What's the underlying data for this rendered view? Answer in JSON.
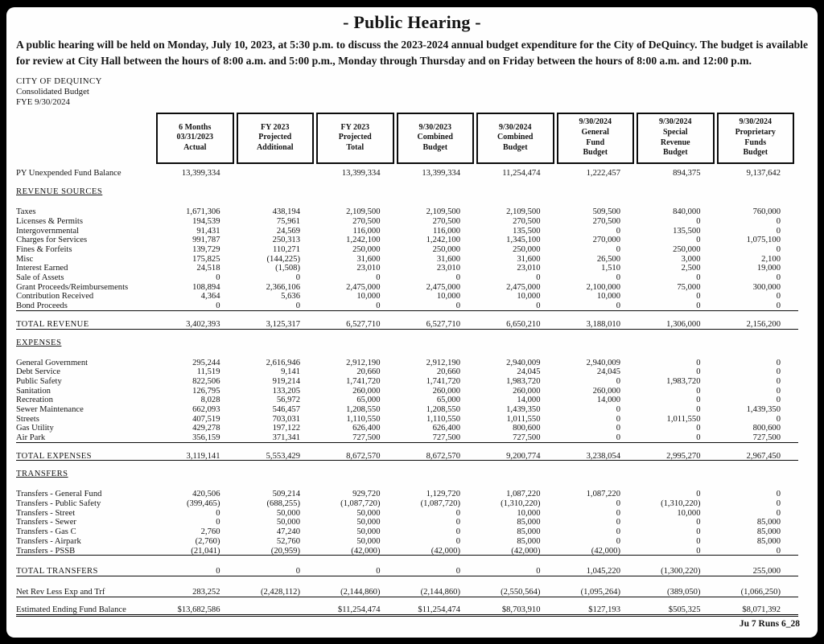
{
  "page": {
    "title": "- Public Hearing -",
    "intro": "A public hearing will be held on Monday, July 10, 2023, at 5:30 p.m. to discuss the 2023-2024 annual budget expenditure for the City of DeQuincy.  The budget is available for review at City Hall between the hours of 8:00 a.m. and 5:00 p.m., Monday through Thursday and on Friday between the hours of 8:00 a.m. and 12:00 p.m.",
    "org_line1": "CITY OF DEQUINCY",
    "org_line2": "Consolidated Budget",
    "org_line3": "FYE 9/30/2024",
    "footer": "Ju 7 Runs 6_28"
  },
  "table": {
    "column_headers": [
      [
        "6 Months",
        "03/31/2023",
        "Actual"
      ],
      [
        "FY 2023",
        "Projected",
        "Additional"
      ],
      [
        "FY 2023",
        "Projected",
        "Total"
      ],
      [
        "9/30/2023",
        "Combined",
        "Budget"
      ],
      [
        "9/30/2024",
        "Combined",
        "Budget"
      ],
      [
        "9/30/2024",
        "General",
        "Fund",
        "Budget"
      ],
      [
        "9/30/2024",
        "Special",
        "Revenue",
        "Budget"
      ],
      [
        "9/30/2024",
        "Proprietary",
        "Funds",
        "Budget"
      ]
    ],
    "rows": [
      {
        "t": "row",
        "label": "PY Unexpended Fund Balance",
        "v": [
          "13,399,334",
          "",
          "13,399,334",
          "13,399,334",
          "11,254,474",
          "1,222,457",
          "894,375",
          "9,137,642"
        ]
      },
      {
        "t": "gap",
        "h": 12
      },
      {
        "t": "sec",
        "label": "REVENUE SOURCES"
      },
      {
        "t": "gap",
        "h": 13
      },
      {
        "t": "row",
        "label": "Taxes",
        "v": [
          "1,671,306",
          "438,194",
          "2,109,500",
          "2,109,500",
          "2,109,500",
          "509,500",
          "840,000",
          "760,000"
        ]
      },
      {
        "t": "row",
        "label": "Licenses & Permits",
        "v": [
          "194,539",
          "75,961",
          "270,500",
          "270,500",
          "270,500",
          "270,500",
          "0",
          "0"
        ]
      },
      {
        "t": "row",
        "label": "Intergovernmental",
        "v": [
          "91,431",
          "24,569",
          "116,000",
          "116,000",
          "135,500",
          "0",
          "135,500",
          "0"
        ]
      },
      {
        "t": "row",
        "label": "Charges for Services",
        "v": [
          "991,787",
          "250,313",
          "1,242,100",
          "1,242,100",
          "1,345,100",
          "270,000",
          "0",
          "1,075,100"
        ]
      },
      {
        "t": "row",
        "label": "Fines & Forfeits",
        "v": [
          "139,729",
          "110,271",
          "250,000",
          "250,000",
          "250,000",
          "0",
          "250,000",
          "0"
        ]
      },
      {
        "t": "row",
        "label": "Misc",
        "v": [
          "175,825",
          "(144,225)",
          "31,600",
          "31,600",
          "31,600",
          "26,500",
          "3,000",
          "2,100"
        ]
      },
      {
        "t": "row",
        "label": "Interest Earned",
        "v": [
          "24,518",
          "(1,508)",
          "23,010",
          "23,010",
          "23,010",
          "1,510",
          "2,500",
          "19,000"
        ]
      },
      {
        "t": "row",
        "label": "Sale of Assets",
        "v": [
          "0",
          "0",
          "0",
          "0",
          "0",
          "0",
          "0",
          "0"
        ]
      },
      {
        "t": "row",
        "label": "Grant Proceeds/Reimbursements",
        "v": [
          "108,894",
          "2,366,106",
          "2,475,000",
          "2,475,000",
          "2,475,000",
          "2,100,000",
          "75,000",
          "300,000"
        ]
      },
      {
        "t": "row",
        "label": "Contribution Received",
        "v": [
          "4,364",
          "5,636",
          "10,000",
          "10,000",
          "10,000",
          "10,000",
          "0",
          "0"
        ]
      },
      {
        "t": "row",
        "u": true,
        "label": "Bond Proceeds",
        "v": [
          "0",
          "0",
          "0",
          "0",
          "0",
          "0",
          "0",
          "0"
        ]
      },
      {
        "t": "gap",
        "h": 11
      },
      {
        "t": "row",
        "u": true,
        "tot": true,
        "label": "TOTAL REVENUE",
        "v": [
          "3,402,393",
          "3,125,317",
          "6,527,710",
          "6,527,710",
          "6,650,210",
          "3,188,010",
          "1,306,000",
          "2,156,200"
        ]
      },
      {
        "t": "gap",
        "h": 11
      },
      {
        "t": "sec",
        "label": "EXPENSES"
      },
      {
        "t": "gap",
        "h": 13
      },
      {
        "t": "row",
        "label": "General Government",
        "v": [
          "295,244",
          "2,616,946",
          "2,912,190",
          "2,912,190",
          "2,940,009",
          "2,940,009",
          "0",
          "0"
        ]
      },
      {
        "t": "row",
        "label": "Debt Service",
        "v": [
          "11,519",
          "9,141",
          "20,660",
          "20,660",
          "24,045",
          "24,045",
          "0",
          "0"
        ]
      },
      {
        "t": "row",
        "label": "Public Safety",
        "v": [
          "822,506",
          "919,214",
          "1,741,720",
          "1,741,720",
          "1,983,720",
          "0",
          "1,983,720",
          "0"
        ]
      },
      {
        "t": "row",
        "label": "Sanitation",
        "v": [
          "126,795",
          "133,205",
          "260,000",
          "260,000",
          "260,000",
          "260,000",
          "0",
          "0"
        ]
      },
      {
        "t": "row",
        "label": "Recreation",
        "v": [
          "8,028",
          "56,972",
          "65,000",
          "65,000",
          "14,000",
          "14,000",
          "0",
          "0"
        ]
      },
      {
        "t": "row",
        "label": "Sewer Maintenance",
        "v": [
          "662,093",
          "546,457",
          "1,208,550",
          "1,208,550",
          "1,439,350",
          "0",
          "0",
          "1,439,350"
        ]
      },
      {
        "t": "row",
        "label": "Streets",
        "v": [
          "407,519",
          "703,031",
          "1,110,550",
          "1,110,550",
          "1,011,550",
          "0",
          "1,011,550",
          "0"
        ]
      },
      {
        "t": "row",
        "label": "Gas Utility",
        "v": [
          "429,278",
          "197,122",
          "626,400",
          "626,400",
          "800,600",
          "0",
          "0",
          "800,600"
        ]
      },
      {
        "t": "row",
        "u": true,
        "label": "Air Park",
        "v": [
          "356,159",
          "371,341",
          "727,500",
          "727,500",
          "727,500",
          "0",
          "0",
          "727,500"
        ]
      },
      {
        "t": "gap",
        "h": 11
      },
      {
        "t": "row",
        "u": true,
        "tot": true,
        "label": "TOTAL EXPENSES",
        "v": [
          "3,119,141",
          "5,553,429",
          "8,672,570",
          "8,672,570",
          "9,200,774",
          "3,238,054",
          "2,995,270",
          "2,967,450"
        ]
      },
      {
        "t": "gap",
        "h": 11
      },
      {
        "t": "sec",
        "label": "TRANSFERS"
      },
      {
        "t": "gap",
        "h": 13
      },
      {
        "t": "row",
        "label": "Transfers - General Fund",
        "v": [
          "420,506",
          "509,214",
          "929,720",
          "1,129,720",
          "1,087,220",
          "1,087,220",
          "0",
          "0"
        ]
      },
      {
        "t": "row",
        "label": "Transfers - Public Safety",
        "v": [
          "(399,465)",
          "(688,255)",
          "(1,087,720)",
          "(1,087,720)",
          "(1,310,220)",
          "0",
          "(1,310,220)",
          "0"
        ]
      },
      {
        "t": "row",
        "label": "Transfers - Street",
        "v": [
          "0",
          "50,000",
          "50,000",
          "0",
          "10,000",
          "0",
          "10,000",
          "0"
        ]
      },
      {
        "t": "row",
        "label": "Transfers - Sewer",
        "v": [
          "0",
          "50,000",
          "50,000",
          "0",
          "85,000",
          "0",
          "0",
          "85,000"
        ]
      },
      {
        "t": "row",
        "label": "Transfers - Gas C",
        "v": [
          "2,760",
          "47,240",
          "50,000",
          "0",
          "85,000",
          "0",
          "0",
          "85,000"
        ]
      },
      {
        "t": "row",
        "label": "Transfers - Airpark",
        "v": [
          "(2,760)",
          "52,760",
          "50,000",
          "0",
          "85,000",
          "0",
          "0",
          "85,000"
        ]
      },
      {
        "t": "row",
        "u": true,
        "label": "Transfers - PSSB",
        "v": [
          "(21,041)",
          "(20,959)",
          "(42,000)",
          "(42,000)",
          "(42,000)",
          "(42,000)",
          "0",
          "0"
        ]
      },
      {
        "t": "gap",
        "h": 14
      },
      {
        "t": "row",
        "u": true,
        "tot": true,
        "label": "TOTAL TRANSFERS",
        "v": [
          "0",
          "0",
          "0",
          "0",
          "0",
          "1,045,220",
          "(1,300,220)",
          "255,000"
        ]
      },
      {
        "t": "gap",
        "h": 14
      },
      {
        "t": "row",
        "u": true,
        "label": "Net Rev Less Exp and Trf",
        "v": [
          "283,252",
          "(2,428,112)",
          "(2,144,860)",
          "(2,144,860)",
          "(2,550,564)",
          "(1,095,264)",
          "(389,050)",
          "(1,066,250)"
        ]
      },
      {
        "t": "gap",
        "h": 10
      },
      {
        "t": "row",
        "uu": true,
        "label": "Estimated Ending Fund Balance",
        "v": [
          "$13,682,586",
          "",
          "$11,254,474",
          "$11,254,474",
          "$8,703,910",
          "$127,193",
          "$505,325",
          "$8,071,392"
        ]
      }
    ]
  }
}
